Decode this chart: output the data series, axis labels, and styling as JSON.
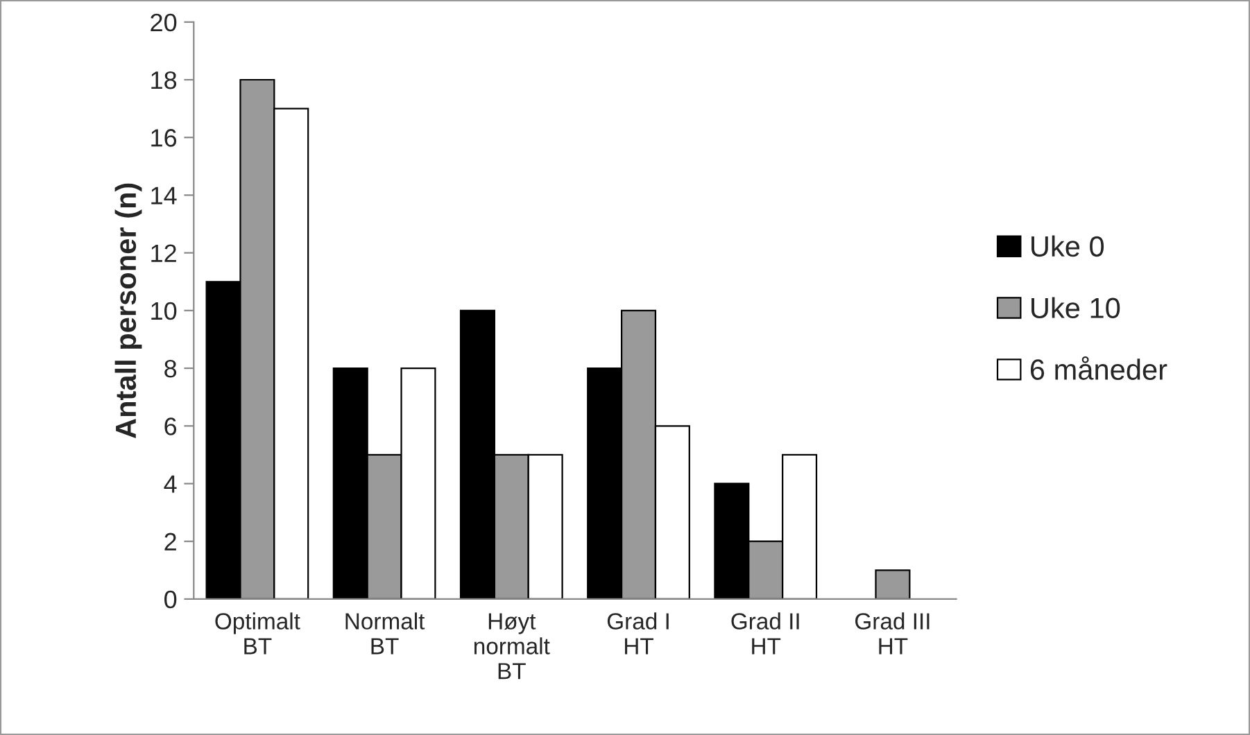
{
  "chart_data": {
    "type": "bar",
    "ylabel": "Antall personer (n)",
    "categories": [
      "Optimalt\nBT",
      "Normalt\nBT",
      "Høyt\nnormalt\nBT",
      "Grad I\nHT",
      "Grad II\nHT",
      "Grad III\nHT"
    ],
    "series": [
      {
        "name": "Uke 0",
        "color": "#000000",
        "values": [
          11,
          8,
          10,
          8,
          4,
          null
        ]
      },
      {
        "name": "Uke 10",
        "color": "#9a9a9a",
        "values": [
          18,
          5,
          5,
          10,
          2,
          1
        ]
      },
      {
        "name": "6 måneder",
        "color": "#ffffff",
        "values": [
          17,
          8,
          5,
          6,
          5,
          null
        ]
      }
    ],
    "ylim": [
      0,
      20
    ],
    "yticks": [
      0,
      2,
      4,
      6,
      8,
      10,
      12,
      14,
      16,
      18,
      20
    ],
    "grid": false,
    "legend": "right"
  }
}
